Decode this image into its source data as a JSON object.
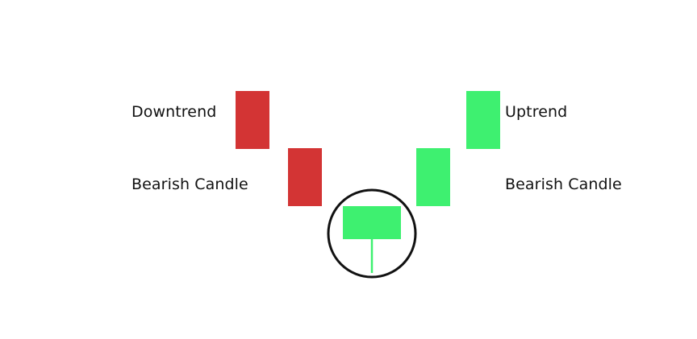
{
  "labels": {
    "left_top": "Downtrend",
    "left_bottom": "Bearish Candle",
    "right_top": "Uptrend",
    "right_bottom": "Bearish Candle"
  },
  "colors": {
    "bearish": "#d33434",
    "bullish": "#3ef070",
    "highlight_circle": "#111111",
    "text": "#111111"
  },
  "candles": [
    {
      "id": "candle-1",
      "direction": "bearish"
    },
    {
      "id": "candle-2",
      "direction": "bearish"
    },
    {
      "id": "candle-3",
      "direction": "bullish",
      "has_long_lower_wick": true,
      "highlighted": true
    },
    {
      "id": "candle-4",
      "direction": "bullish"
    },
    {
      "id": "candle-5",
      "direction": "bullish"
    }
  ]
}
